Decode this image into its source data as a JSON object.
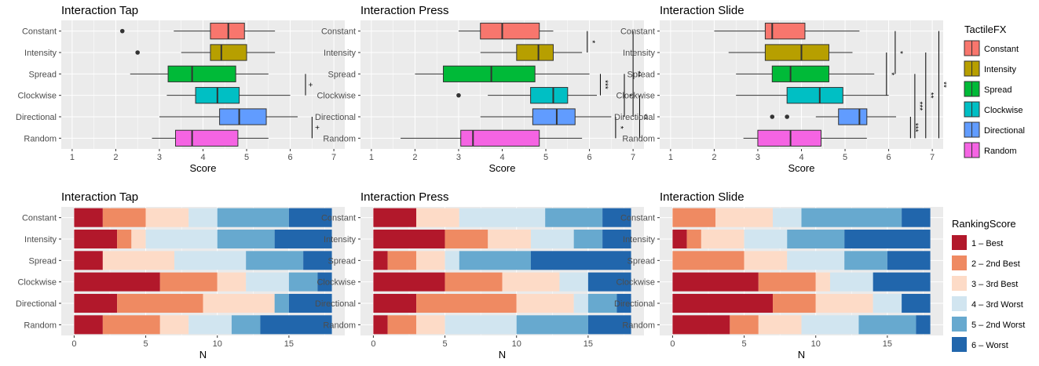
{
  "chart_data": [
    {
      "type": "boxplot",
      "title": "Interaction Tap",
      "xlabel": "Score",
      "xlim": [
        0.75,
        7.25
      ],
      "xticks": [
        1,
        2,
        3,
        4,
        5,
        6,
        7
      ],
      "categories": [
        "Constant",
        "Intensity",
        "Spread",
        "Clockwise",
        "Directional",
        "Random"
      ],
      "boxes": [
        {
          "name": "Constant",
          "whisker_low": 3.33,
          "q1": 4.17,
          "median": 4.58,
          "q3": 4.95,
          "whisker_high": 5.65,
          "outliers": [
            2.15
          ]
        },
        {
          "name": "Intensity",
          "whisker_low": 3.5,
          "q1": 4.17,
          "median": 4.42,
          "q3": 5.0,
          "whisker_high": 5.65,
          "outliers": [
            2.5
          ]
        },
        {
          "name": "Spread",
          "whisker_low": 2.33,
          "q1": 3.2,
          "median": 3.75,
          "q3": 4.75,
          "whisker_high": 5.5,
          "outliers": []
        },
        {
          "name": "Clockwise",
          "whisker_low": 3.17,
          "q1": 3.83,
          "median": 4.33,
          "q3": 4.83,
          "whisker_high": 6.0,
          "outliers": []
        },
        {
          "name": "Directional",
          "whisker_low": 3.0,
          "q1": 4.38,
          "median": 4.83,
          "q3": 5.45,
          "whisker_high": 6.17,
          "outliers": []
        },
        {
          "name": "Random",
          "whisker_low": 2.83,
          "q1": 3.37,
          "median": 3.75,
          "q3": 4.8,
          "whisker_high": 5.5,
          "outliers": []
        }
      ],
      "significance": [
        {
          "from": "Spread",
          "to": "Clockwise",
          "label": "+",
          "x": 6.35
        },
        {
          "from": "Directional",
          "to": "Random",
          "label": "+",
          "x": 6.5
        }
      ]
    },
    {
      "type": "boxplot",
      "title": "Interaction Press",
      "xlabel": "Score",
      "xlim": [
        0.75,
        7.25
      ],
      "xticks": [
        1,
        2,
        3,
        4,
        5,
        6,
        7
      ],
      "categories": [
        "Constant",
        "Intensity",
        "Spread",
        "Clockwise",
        "Directional",
        "Random"
      ],
      "boxes": [
        {
          "name": "Constant",
          "whisker_low": 3.0,
          "q1": 3.5,
          "median": 4.0,
          "q3": 4.85,
          "whisker_high": 5.17,
          "outliers": []
        },
        {
          "name": "Intensity",
          "whisker_low": 3.5,
          "q1": 4.33,
          "median": 4.83,
          "q3": 5.17,
          "whisker_high": 5.83,
          "outliers": []
        },
        {
          "name": "Spread",
          "whisker_low": 2.0,
          "q1": 2.65,
          "median": 3.75,
          "q3": 4.75,
          "whisker_high": 6.0,
          "outliers": []
        },
        {
          "name": "Clockwise",
          "whisker_low": 3.67,
          "q1": 4.65,
          "median": 5.17,
          "q3": 5.5,
          "whisker_high": 6.17,
          "outliers": [
            3.0
          ]
        },
        {
          "name": "Directional",
          "whisker_low": 3.5,
          "q1": 4.7,
          "median": 5.25,
          "q3": 5.67,
          "whisker_high": 6.5,
          "outliers": []
        },
        {
          "name": "Random",
          "whisker_low": 1.67,
          "q1": 3.05,
          "median": 3.33,
          "q3": 4.85,
          "whisker_high": 5.83,
          "outliers": []
        }
      ],
      "significance": [
        {
          "from": "Constant",
          "to": "Intensity",
          "label": "*",
          "x": 5.95
        },
        {
          "from": "Spread",
          "to": "Clockwise",
          "label": "***",
          "x": 6.25
        },
        {
          "from": "Spread",
          "to": "Directional",
          "label": "*",
          "x": 6.8
        },
        {
          "from": "Constant",
          "to": "Directional",
          "label": "**",
          "x": 7.0
        },
        {
          "from": "Directional",
          "to": "Random",
          "label": "*",
          "x": 6.6
        },
        {
          "from": "Clockwise",
          "to": "Random",
          "label": "**",
          "x": 7.15
        }
      ]
    },
    {
      "type": "boxplot",
      "title": "Interaction Slide",
      "xlabel": "Score",
      "xlim": [
        0.75,
        7.25
      ],
      "xticks": [
        1,
        2,
        3,
        4,
        5,
        6,
        7
      ],
      "categories": [
        "Constant",
        "Intensity",
        "Spread",
        "Clockwise",
        "Directional",
        "Random"
      ],
      "boxes": [
        {
          "name": "Constant",
          "whisker_low": 2.0,
          "q1": 3.17,
          "median": 3.33,
          "q3": 4.08,
          "whisker_high": 5.33,
          "outliers": []
        },
        {
          "name": "Intensity",
          "whisker_low": 2.33,
          "q1": 3.17,
          "median": 4.0,
          "q3": 4.63,
          "whisker_high": 5.17,
          "outliers": []
        },
        {
          "name": "Spread",
          "whisker_low": 2.5,
          "q1": 3.33,
          "median": 3.75,
          "q3": 4.63,
          "whisker_high": 5.67,
          "outliers": []
        },
        {
          "name": "Clockwise",
          "whisker_low": 2.5,
          "q1": 3.67,
          "median": 4.42,
          "q3": 4.95,
          "whisker_high": 6.0,
          "outliers": []
        },
        {
          "name": "Directional",
          "whisker_low": 4.33,
          "q1": 4.85,
          "median": 5.33,
          "q3": 5.5,
          "whisker_high": 6.17,
          "outliers": [
            3.33,
            3.67
          ]
        },
        {
          "name": "Random",
          "whisker_low": 2.67,
          "q1": 3.0,
          "median": 3.75,
          "q3": 4.45,
          "whisker_high": 5.5,
          "outliers": []
        }
      ],
      "significance": [
        {
          "from": "Constant",
          "to": "Spread",
          "label": "*",
          "x": 6.15
        },
        {
          "from": "Intensity",
          "to": "Clockwise",
          "label": "*",
          "x": 5.95
        },
        {
          "from": "Spread",
          "to": "Random",
          "label": "***",
          "x": 6.6
        },
        {
          "from": "Intensity",
          "to": "Random",
          "label": "**",
          "x": 6.85
        },
        {
          "from": "Constant",
          "to": "Random",
          "label": "**",
          "x": 7.15
        },
        {
          "from": "Directional",
          "to": "Random",
          "label": "***",
          "x": 6.5
        }
      ]
    },
    {
      "type": "stacked_bar",
      "title": "Interaction Tap",
      "xlabel": "N",
      "xlim": [
        -0.9,
        18.9
      ],
      "xticks": [
        0,
        5,
        10,
        15
      ],
      "categories": [
        "Constant",
        "Intensity",
        "Spread",
        "Clockwise",
        "Directional",
        "Random"
      ],
      "series": [
        {
          "name": "1 – Best",
          "values": [
            2,
            3,
            2,
            6,
            3,
            2
          ]
        },
        {
          "name": "2 – 2nd Best",
          "values": [
            3,
            1,
            0,
            4,
            6,
            4
          ]
        },
        {
          "name": "3 – 3rd Best",
          "values": [
            3,
            1,
            5,
            2,
            5,
            2
          ]
        },
        {
          "name": "4 – 3rd Worst",
          "values": [
            2,
            5,
            5,
            3,
            0,
            3
          ]
        },
        {
          "name": "5 – 2nd Worst",
          "values": [
            5,
            4,
            4,
            2,
            1,
            2
          ]
        },
        {
          "name": "6 – Worst",
          "values": [
            3,
            4,
            2,
            1,
            3,
            5
          ]
        }
      ]
    },
    {
      "type": "stacked_bar",
      "title": "Interaction Press",
      "xlabel": "N",
      "xlim": [
        -0.9,
        18.9
      ],
      "xticks": [
        0,
        5,
        10,
        15
      ],
      "categories": [
        "Constant",
        "Intensity",
        "Spread",
        "Clockwise",
        "Directional",
        "Random"
      ],
      "series": [
        {
          "name": "1 – Best",
          "values": [
            3,
            5,
            1,
            5,
            3,
            1
          ]
        },
        {
          "name": "2 – 2nd Best",
          "values": [
            0,
            3,
            2,
            4,
            7,
            2
          ]
        },
        {
          "name": "3 – 3rd Best",
          "values": [
            3,
            3,
            2,
            4,
            4,
            2
          ]
        },
        {
          "name": "4 – 3rd Worst",
          "values": [
            6,
            3,
            1,
            2,
            1,
            5
          ]
        },
        {
          "name": "5 – 2nd Worst",
          "values": [
            4,
            2,
            5,
            0,
            2,
            5
          ]
        },
        {
          "name": "6 – Worst",
          "values": [
            2,
            2,
            7,
            3,
            1,
            3
          ]
        }
      ]
    },
    {
      "type": "stacked_bar",
      "title": "Interaction Slide",
      "xlabel": "N",
      "xlim": [
        -0.9,
        18.9
      ],
      "xticks": [
        0,
        5,
        10,
        15
      ],
      "categories": [
        "Constant",
        "Intensity",
        "Spread",
        "Clockwise",
        "Directional",
        "Random"
      ],
      "series": [
        {
          "name": "1 – Best",
          "values": [
            0,
            1,
            0,
            6,
            7,
            4
          ]
        },
        {
          "name": "2 – 2nd Best",
          "values": [
            3,
            1,
            5,
            4,
            3,
            2
          ]
        },
        {
          "name": "3 – 3rd Best",
          "values": [
            4,
            3,
            3,
            1,
            4,
            3
          ]
        },
        {
          "name": "4 – 3rd Worst",
          "values": [
            2,
            3,
            4,
            3,
            2,
            4
          ]
        },
        {
          "name": "5 – 2nd Worst",
          "values": [
            7,
            4,
            3,
            0,
            0,
            4
          ]
        },
        {
          "name": "6 – Worst",
          "values": [
            2,
            6,
            3,
            4,
            2,
            1
          ]
        }
      ]
    }
  ],
  "legends": {
    "box": {
      "title": "TactileFX",
      "items": [
        {
          "label": "Constant",
          "color": "#F8766D"
        },
        {
          "label": "Intensity",
          "color": "#B79F00"
        },
        {
          "label": "Spread",
          "color": "#00BA38"
        },
        {
          "label": "Clockwise",
          "color": "#00BFC4"
        },
        {
          "label": "Directional",
          "color": "#619CFF"
        },
        {
          "label": "Random",
          "color": "#F564E3"
        }
      ]
    },
    "rank": {
      "title": "RankingScore",
      "items": [
        {
          "label": "1 – Best",
          "color": "#B2182B"
        },
        {
          "label": "2 – 2nd Best",
          "color": "#EF8A62"
        },
        {
          "label": "3 – 3rd Best",
          "color": "#FDDBC7"
        },
        {
          "label": "4 – 3rd Worst",
          "color": "#D1E5F0"
        },
        {
          "label": "5 – 2nd Worst",
          "color": "#67A9CF"
        },
        {
          "label": "6 – Worst",
          "color": "#2166AC"
        }
      ]
    }
  },
  "colors": {
    "panel_background": "#EBEBEB",
    "gridline": "#FFFFFF",
    "text": "#000000",
    "axis_text": "#4D4D4D"
  }
}
